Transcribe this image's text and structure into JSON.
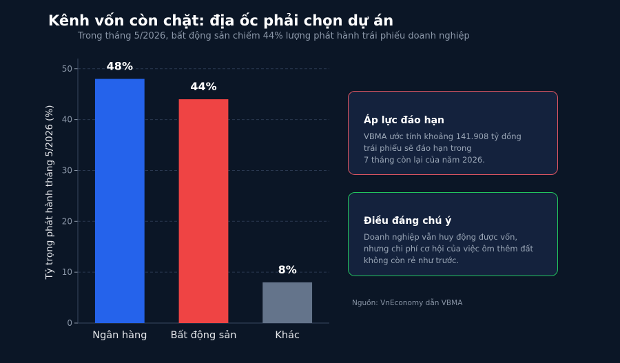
{
  "title": "Kênh vốn còn chặt: địa ốc phải chọn dự án",
  "subtitle": "Trong tháng 5/2026, bất động sản chiếm 44% lượng phát hành trái phiếu doanh nghiệp",
  "chart_data": {
    "type": "bar",
    "categories": [
      "Ngân hàng",
      "Bất động sản",
      "Khác"
    ],
    "values": [
      48,
      44,
      8
    ],
    "data_labels": [
      "48%",
      "44%",
      "8%"
    ],
    "colors": [
      "#2563eb",
      "#ef4444",
      "#64748b"
    ],
    "ylabel": "Tỷ trọng phát hành tháng 5/2026 (%)",
    "ylim": [
      0,
      52
    ],
    "yticks": [
      0,
      10,
      20,
      30,
      40,
      50
    ],
    "grid": true
  },
  "cards": [
    {
      "title": "Áp lực đáo hạn",
      "body": "VBMA ước tính khoảng 141.908 tỷ đồng\ntrái phiếu sẽ đáo hạn trong\n7 tháng còn lại của năm 2026.",
      "border_color": "#e05561"
    },
    {
      "title": "Điều đáng chú ý",
      "body": "Doanh nghiệp vẫn huy động được vốn,\nnhưng chi phí cơ hội của việc ôm thêm đất\nkhông còn rẻ như trước.",
      "border_color": "#22c55e"
    }
  ],
  "source": "Nguồn: VnEconomy dẫn VBMA"
}
